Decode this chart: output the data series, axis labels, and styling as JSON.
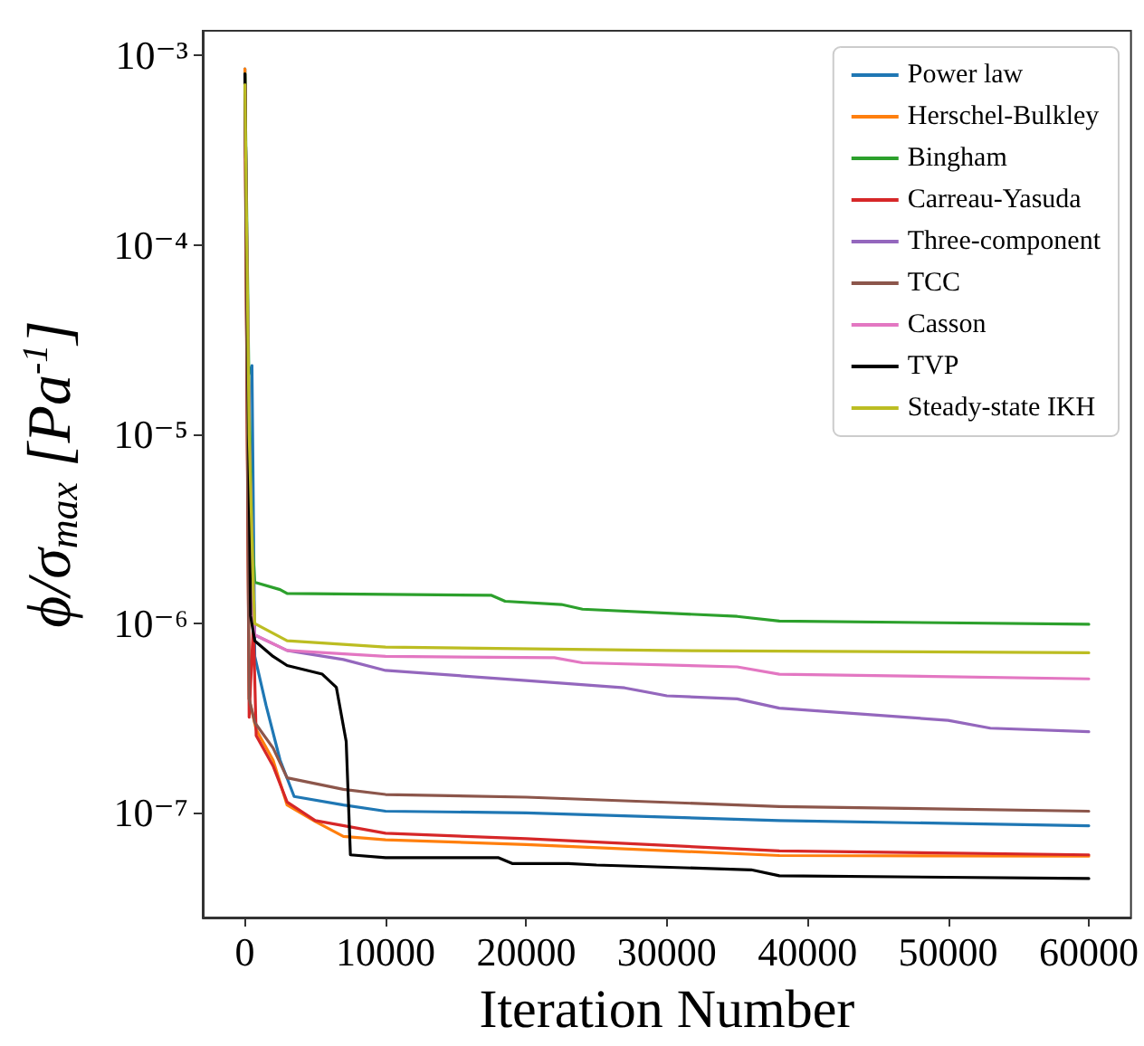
{
  "chart_data": {
    "type": "line",
    "xlabel": "Iteration Number",
    "ylabel": "ϕ/σ$_{max}$ [Pa$^{-1}$]",
    "log": "y",
    "grid": false,
    "legend": "top right",
    "marker": "none",
    "line_style": "solid",
    "xlim": [
      -3000,
      63000
    ],
    "xticks": [
      0,
      10000,
      20000,
      30000,
      40000,
      50000,
      60000
    ],
    "ylim": [
      2.8e-08,
      0.00135
    ],
    "yticks": [
      {
        "value": 1e-07,
        "label": "10⁻⁷"
      },
      {
        "value": 1e-06,
        "label": "10⁻⁶"
      },
      {
        "value": 1e-05,
        "label": "10⁻⁵"
      },
      {
        "value": 0.0001,
        "label": "10⁻⁴"
      },
      {
        "value": 0.001,
        "label": "10⁻³"
      }
    ],
    "series": [
      {
        "name": "Power law",
        "color": "#1f77b4",
        "x": [
          0,
          200,
          500,
          700,
          1500,
          2500,
          3500,
          7000,
          10000,
          20000,
          38000,
          60000
        ],
        "values": [
          0.00085,
          2e-05,
          2.3e-05,
          6.7e-07,
          3.7e-07,
          1.9e-07,
          1.22e-07,
          1.1e-07,
          1.02e-07,
          1e-07,
          9.1e-08,
          8.55e-08
        ]
      },
      {
        "name": "Herschel-Bulkley",
        "color": "#ff7f0e",
        "x": [
          0,
          300,
          800,
          2000,
          3000,
          5000,
          7000,
          10000,
          20000,
          38000,
          60000
        ],
        "values": [
          0.00085,
          4e-07,
          2.75e-07,
          1.9e-07,
          1.1e-07,
          9e-08,
          7.5e-08,
          7.2e-08,
          6.8e-08,
          5.95e-08,
          5.9e-08
        ]
      },
      {
        "name": "Bingham",
        "color": "#2ca02c",
        "x": [
          0,
          300,
          500,
          700,
          2500,
          3000,
          17500,
          18500,
          22500,
          24000,
          35000,
          38000,
          60000
        ],
        "values": [
          0.0008,
          1.5e-05,
          3e-06,
          1.65e-06,
          1.51e-06,
          1.44e-06,
          1.41e-06,
          1.31e-06,
          1.26e-06,
          1.19e-06,
          1.09e-06,
          1.03e-06,
          9.9e-07
        ]
      },
      {
        "name": "Carreau-Yasuda",
        "color": "#d62728",
        "x": [
          0,
          300,
          600,
          800,
          2000,
          3000,
          5000,
          10000,
          20000,
          38000,
          60000
        ],
        "values": [
          0.0007,
          3.2e-07,
          1e-06,
          2.56e-07,
          1.77e-07,
          1.14e-07,
          9.1e-08,
          7.8e-08,
          7.3e-08,
          6.3e-08,
          6e-08
        ]
      },
      {
        "name": "Three-component",
        "color": "#9467bd",
        "x": [
          0,
          300,
          700,
          3000,
          7000,
          10000,
          20000,
          27000,
          30000,
          35000,
          38000,
          50000,
          53000,
          60000
        ],
        "values": [
          0.0007,
          1e-05,
          8.7e-07,
          7.2e-07,
          6.45e-07,
          5.65e-07,
          5e-07,
          4.57e-07,
          4.15e-07,
          4e-07,
          3.57e-07,
          3.08e-07,
          2.8e-07,
          2.68e-07
        ]
      },
      {
        "name": "TCC",
        "color": "#8c564b",
        "x": [
          0,
          300,
          700,
          2000,
          3000,
          7000,
          10000,
          20000,
          38000,
          60000
        ],
        "values": [
          0.0007,
          4e-07,
          3e-07,
          2.2e-07,
          1.53e-07,
          1.33e-07,
          1.25e-07,
          1.21e-07,
          1.08e-07,
          1.02e-07
        ]
      },
      {
        "name": "Casson",
        "color": "#e377c2",
        "x": [
          0,
          300,
          600,
          700,
          3000,
          10000,
          22000,
          24000,
          35000,
          38000,
          60000
        ],
        "values": [
          0.0007,
          1e-05,
          1e-06,
          8.7e-07,
          7.2e-07,
          6.7e-07,
          6.6e-07,
          6.2e-07,
          5.9e-07,
          5.4e-07,
          5.1e-07
        ]
      },
      {
        "name": "TVP",
        "color": "#000000",
        "x": [
          0,
          200,
          400,
          700,
          2000,
          3000,
          5500,
          6500,
          7200,
          7500,
          10000,
          18000,
          19000,
          23000,
          25000,
          36000,
          38000,
          60000
        ],
        "values": [
          0.0008,
          2.8e-05,
          1.1e-06,
          8.1e-07,
          6.7e-07,
          6e-07,
          5.4e-07,
          4.6e-07,
          2.38e-07,
          6e-08,
          5.8e-08,
          5.8e-08,
          5.4e-08,
          5.4e-08,
          5.3e-08,
          5e-08,
          4.65e-08,
          4.5e-08
        ]
      },
      {
        "name": "Steady-state IKH",
        "color": "#bcbd22",
        "x": [
          0,
          300,
          600,
          700,
          3000,
          10000,
          30000,
          60000
        ],
        "values": [
          0.0007,
          1e-05,
          1.5e-06,
          1e-06,
          8.1e-07,
          7.5e-07,
          7.2e-07,
          7e-07
        ]
      }
    ]
  }
}
